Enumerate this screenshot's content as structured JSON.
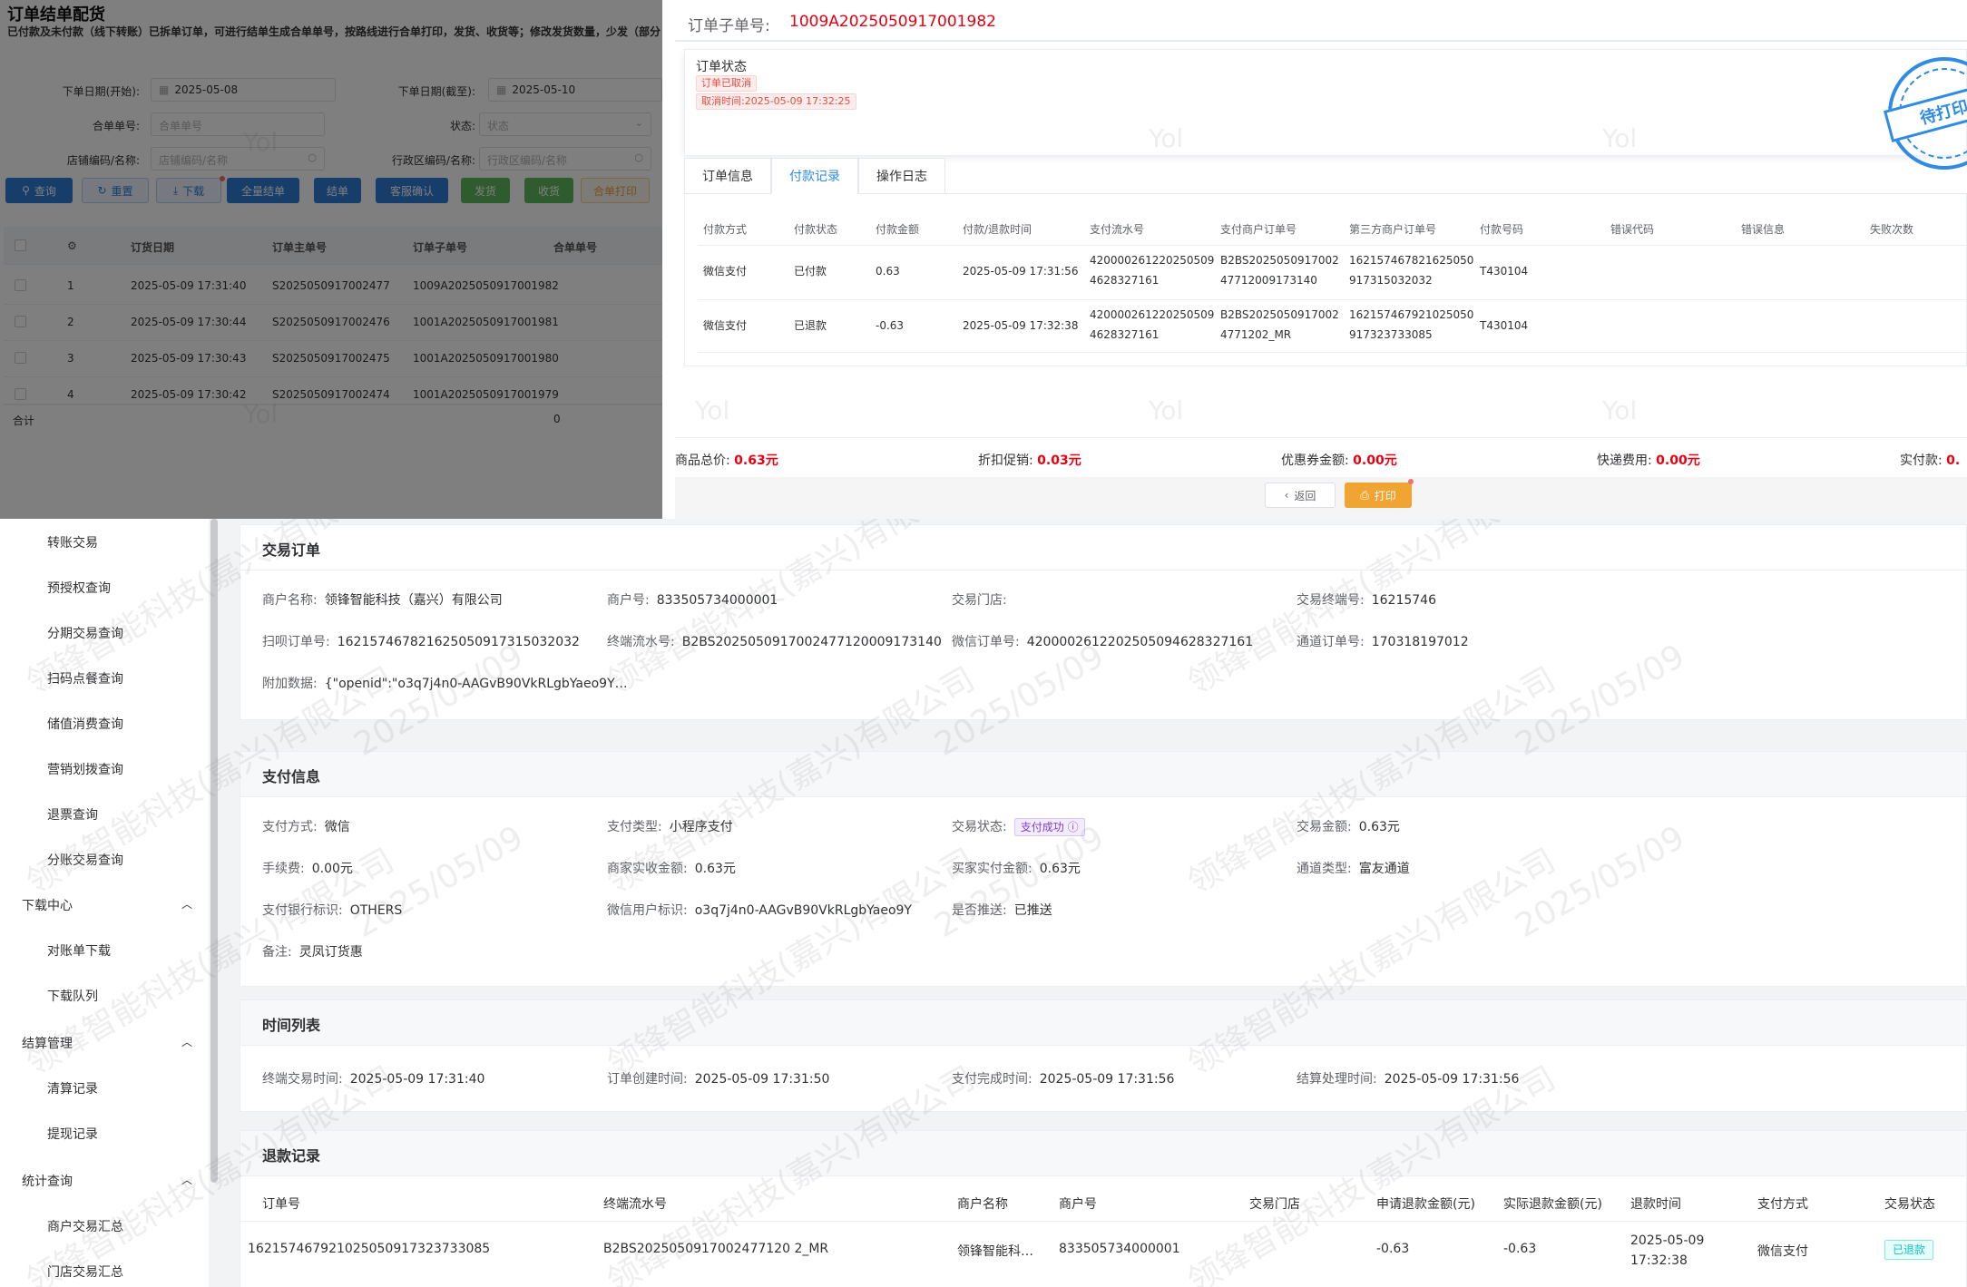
{
  "bg_page": {
    "title": "订单结单配货",
    "notice": "已付款及未付款（线下转账）已拆单订单，可进行结单生成合单单号，按路线进行合单打印，发货、收货等；修改发货数量，少发（部分",
    "filters": {
      "date_start_label": "下单日期(开始):",
      "date_start_value": "2025-05-08",
      "date_end_label": "下单日期(截至):",
      "date_end_value": "2025-05-10",
      "merge_no_label": "合单单号:",
      "merge_no_placeholder": "合单单号",
      "status_label": "状态:",
      "status_placeholder": "状态",
      "store_label": "店铺编码/名称:",
      "store_placeholder": "店铺编码/名称",
      "region_label": "行政区编码/名称:",
      "region_placeholder": "行政区编码/名称"
    },
    "buttons": {
      "query": "查询",
      "reset": "重置",
      "download": "下载",
      "settle_all": "全量结单",
      "settle": "结单",
      "service_confirm": "客服确认",
      "ship": "发货",
      "receive": "收货",
      "merge_print": "合单打印"
    },
    "table": {
      "headers": [
        "订货日期",
        "订单主单号",
        "订单子单号",
        "合单单号"
      ],
      "rows": [
        {
          "idx": "1",
          "date": "2025-05-09 17:31:40",
          "main": "S2025050917002477",
          "sub": "1009A2025050917001982"
        },
        {
          "idx": "2",
          "date": "2025-05-09 17:30:44",
          "main": "S2025050917002476",
          "sub": "1001A2025050917001981"
        },
        {
          "idx": "3",
          "date": "2025-05-09 17:30:43",
          "main": "S2025050917002475",
          "sub": "1001A2025050917001980"
        },
        {
          "idx": "4",
          "date": "2025-05-09 17:30:42",
          "main": "S2025050917002474",
          "sub": "1001A2025050917001979"
        }
      ],
      "sum_label": "合计",
      "sum_value": "0"
    }
  },
  "drawer": {
    "order_no_label": "订单子单号:",
    "order_no_value": "1009A2025050917001982",
    "status_title": "订单状态",
    "status_tag": "订单已取消",
    "cancel_time": "取消时间:2025-05-09 17:32:25",
    "stamp_text": "待打印",
    "tabs": [
      "订单信息",
      "付款记录",
      "操作日志"
    ],
    "active_tab": "付款记录",
    "pay_headers": [
      "付款方式",
      "付款状态",
      "付款金额",
      "付款/退款时间",
      "支付流水号",
      "支付商户订单号",
      "第三方商户订单号",
      "付款号码",
      "错误代码",
      "错误信息",
      "失败次数"
    ],
    "pay_rows": [
      {
        "method": "微信支付",
        "status": "已付款",
        "amount": "0.63",
        "time": "2025-05-09 17:31:56",
        "serial_1": "420000261220250509",
        "serial_2": "4628327161",
        "merchant_1": "B2BS2025050917002",
        "merchant_2": "47712009173140",
        "third_1": "162157467821625050",
        "third_2": "917315032032",
        "pay_no": "T430104"
      },
      {
        "method": "微信支付",
        "status": "已退款",
        "amount": "-0.63",
        "time": "2025-05-09 17:32:38",
        "serial_1": "420000261220250509",
        "serial_2": "4628327161",
        "merchant_1": "B2BS2025050917002",
        "merchant_2": "4771202_MR",
        "third_1": "162157467921025050",
        "third_2": "917323733085",
        "pay_no": "T430104"
      }
    ],
    "totals": {
      "goods_label": "商品总价:",
      "goods_value": "0.63元",
      "discount_label": "折扣促销:",
      "discount_value": "0.03元",
      "coupon_label": "优惠券金额:",
      "coupon_value": "0.00元",
      "shipping_label": "快递费用:",
      "shipping_value": "0.00元",
      "paid_label": "实付款:",
      "paid_value": "0."
    },
    "back_label": "返回",
    "print_label": "打印"
  },
  "sidebar": {
    "items": [
      {
        "label": "转账交易",
        "type": "item"
      },
      {
        "label": "预授权查询",
        "type": "item"
      },
      {
        "label": "分期交易查询",
        "type": "item"
      },
      {
        "label": "扫码点餐查询",
        "type": "item"
      },
      {
        "label": "储值消费查询",
        "type": "item"
      },
      {
        "label": "营销划拨查询",
        "type": "item"
      },
      {
        "label": "退票查询",
        "type": "item"
      },
      {
        "label": "分账交易查询",
        "type": "item"
      },
      {
        "label": "下载中心",
        "type": "group"
      },
      {
        "label": "对账单下载",
        "type": "item"
      },
      {
        "label": "下载队列",
        "type": "item"
      },
      {
        "label": "结算管理",
        "type": "group"
      },
      {
        "label": "清算记录",
        "type": "item"
      },
      {
        "label": "提现记录",
        "type": "item"
      },
      {
        "label": "统计查询",
        "type": "group"
      },
      {
        "label": "商户交易汇总",
        "type": "item"
      },
      {
        "label": "门店交易汇总",
        "type": "item"
      }
    ]
  },
  "trade_order": {
    "title": "交易订单",
    "merchant_name_label": "商户名称:",
    "merchant_name_value": "领锋智能科技（嘉兴）有限公司",
    "merchant_no_label": "商户号:",
    "merchant_no_value": "833505734000001",
    "store_label": "交易门店:",
    "store_value": "",
    "terminal_label": "交易终端号:",
    "terminal_value": "16215746",
    "scan_order_label": "扫呗订单号:",
    "scan_order_value": "162157467821625050917315032032",
    "terminal_serial_label": "终端流水号:",
    "terminal_serial_value": "B2BS2025050917002477120009173140",
    "wechat_order_label": "微信订单号:",
    "wechat_order_value": "4200002612202505094628327161",
    "channel_order_label": "通道订单号:",
    "channel_order_value": "170318197012",
    "attach_label": "附加数据:",
    "attach_value": "{\"openid\":\"o3q7j4n0-AAGvB90VkRLgbYaeo9Y…"
  },
  "pay_info": {
    "title": "支付信息",
    "method_label": "支付方式:",
    "method_value": "微信",
    "type_label": "支付类型:",
    "type_value": "小程序支付",
    "trade_status_label": "交易状态:",
    "trade_status_value": "支付成功",
    "amount_label": "交易金额:",
    "amount_value": "0.63元",
    "fee_label": "手续费:",
    "fee_value": "0.00元",
    "merchant_recv_label": "商家实收金额:",
    "merchant_recv_value": "0.63元",
    "buyer_paid_label": "买家实付金额:",
    "buyer_paid_value": "0.63元",
    "channel_type_label": "通道类型:",
    "channel_type_value": "富友通道",
    "bank_label": "支付银行标识:",
    "bank_value": "OTHERS",
    "wx_user_label": "微信用户标识:",
    "wx_user_value": "o3q7j4n0-AAGvB90VkRLgbYaeo9Y",
    "pushed_label": "是否推送:",
    "pushed_value": "已推送",
    "remark_label": "备注:",
    "remark_value": "灵凤订货惠"
  },
  "time_list": {
    "title": "时间列表",
    "terminal_time_label": "终端交易时间:",
    "terminal_time_value": "2025-05-09 17:31:40",
    "order_created_label": "订单创建时间:",
    "order_created_value": "2025-05-09 17:31:50",
    "pay_done_label": "支付完成时间:",
    "pay_done_value": "2025-05-09 17:31:56",
    "settle_label": "结算处理时间:",
    "settle_value": "2025-05-09 17:31:56"
  },
  "refund": {
    "title": "退款记录",
    "headers": [
      "订单号",
      "终端流水号",
      "商户名称",
      "商户号",
      "交易门店",
      "申请退款金额(元)",
      "实际退款金额(元)",
      "退款时间",
      "支付方式",
      "交易状态"
    ],
    "row": {
      "order_no": "162157467921025050917323733085",
      "terminal_serial": "B2BS2025050917002477120 2_MR",
      "merchant_name": "领锋智能科…",
      "merchant_no": "833505734000001",
      "store": "",
      "apply_amount": "-0.63",
      "actual_amount": "-0.63",
      "refund_date": "2025-05-09",
      "refund_time": "17:32:38",
      "pay_method": "微信支付",
      "status": "已退款"
    }
  },
  "colors": {
    "accent_red": "#e60012",
    "primary_blue": "#2f7bd5",
    "stamp_blue": "#2f8be3",
    "print_orange": "#f0a532"
  }
}
